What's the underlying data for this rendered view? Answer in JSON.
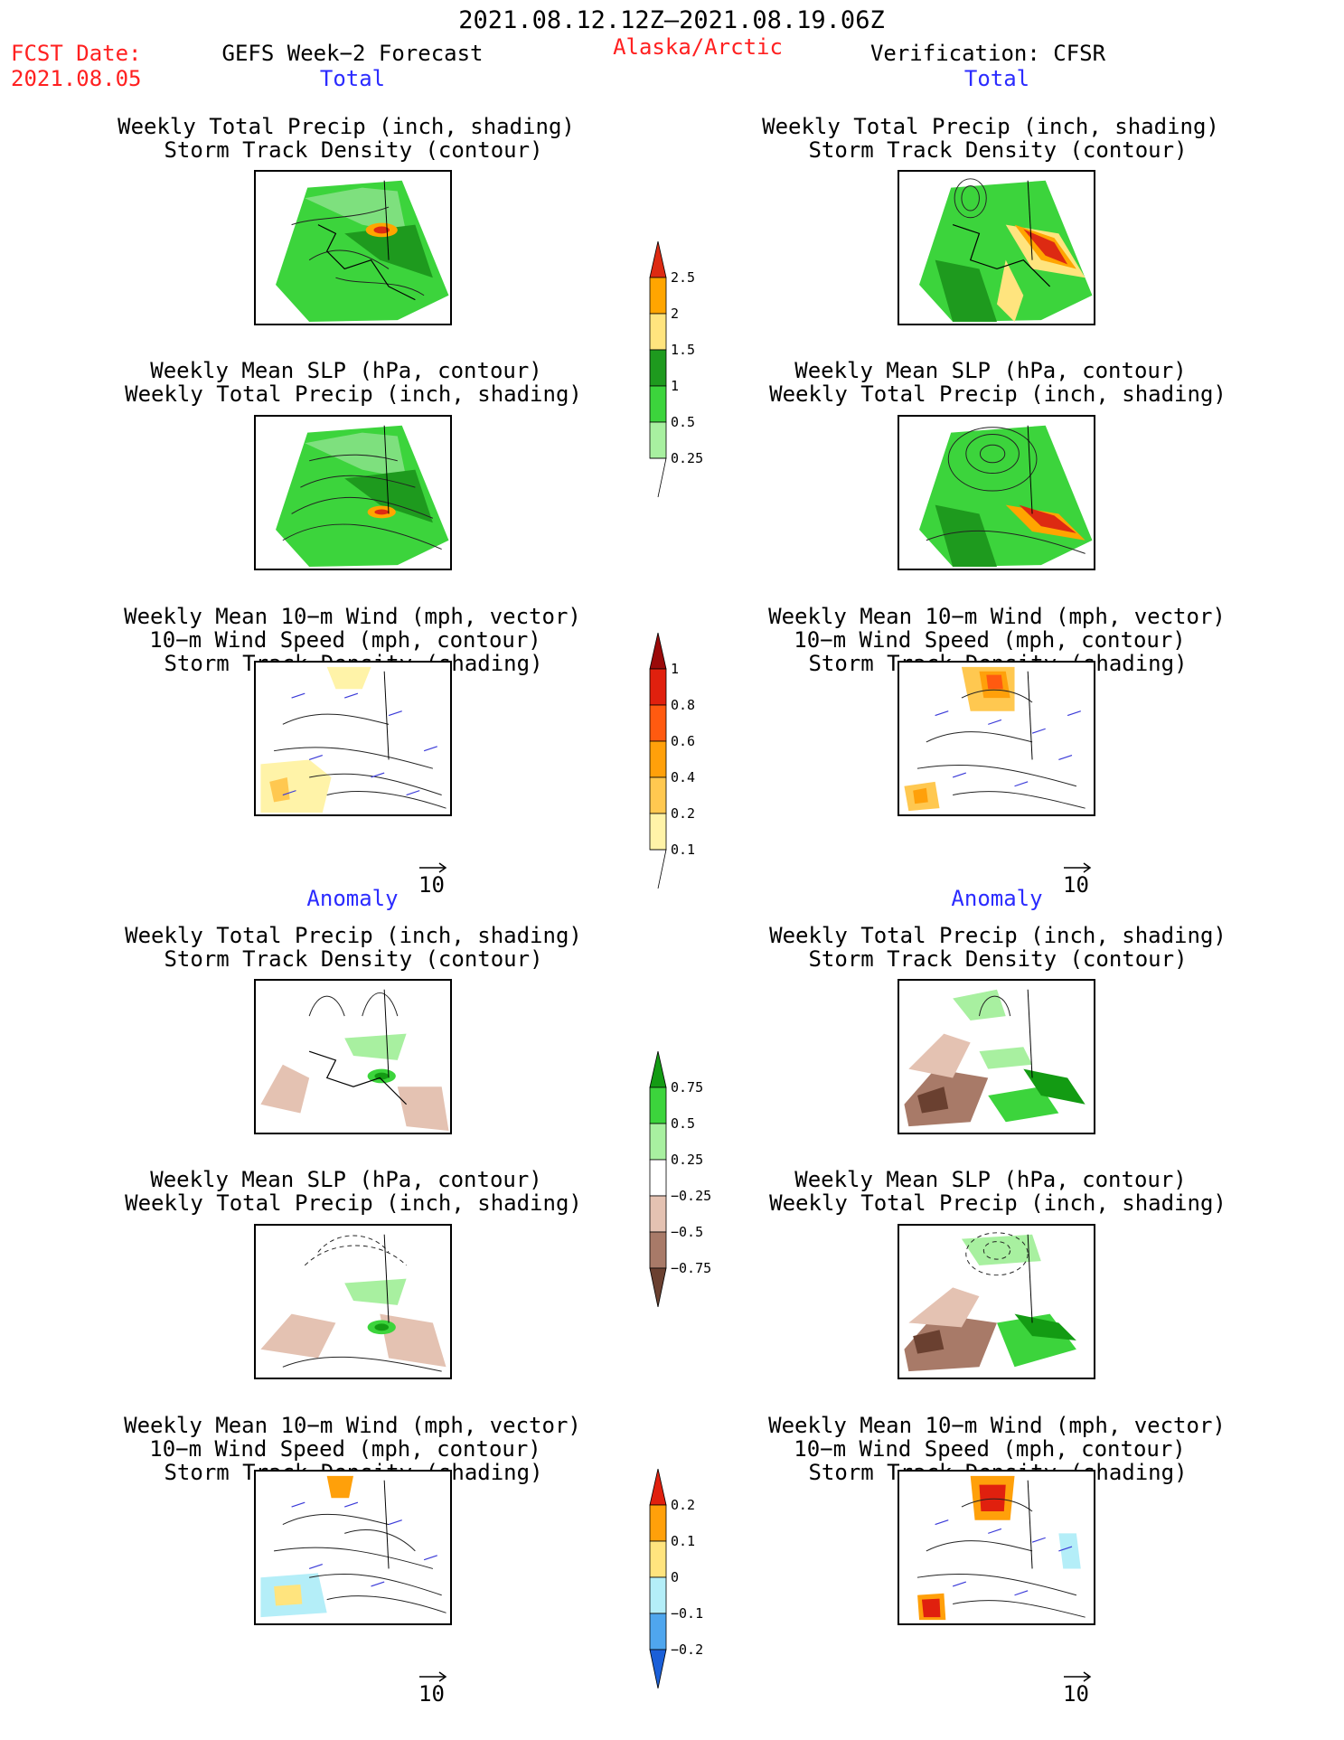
{
  "header": {
    "date_range": "2021.08.12.12Z—2021.08.19.06Z",
    "fcst_label": "FCST Date:",
    "fcst_date": "2021.08.05",
    "forecast_title": "GEFS Week−2 Forecast",
    "region": "Alaska/Arctic",
    "verification": "Verification: CFSR"
  },
  "sections": {
    "total": "Total",
    "anomaly": "Anomaly"
  },
  "panel_titles": {
    "precip_storm": [
      "Weekly Total Precip (inch, shading)",
      "Storm Track Density (contour)"
    ],
    "slp_precip": [
      "Weekly Mean SLP (hPa, contour)",
      "Weekly Total Precip (inch, shading)"
    ],
    "wind": [
      "Weekly Mean 10−m Wind (mph, vector)",
      "10−m Wind Speed (mph, contour)",
      "Storm Track Density (shading)"
    ]
  },
  "vector_reference": "10",
  "colorbars": {
    "precip_total": {
      "labels": [
        "2.5",
        "2",
        "1.5",
        "1",
        "0.5",
        "0.25"
      ],
      "colors": [
        "#dd2a12",
        "#ffa500",
        "#ffe47e",
        "#1e9a1e",
        "#3cd43c",
        "#a8f0a0"
      ]
    },
    "storm_total": {
      "labels": [
        "1",
        "0.8",
        "0.6",
        "0.4",
        "0.2",
        "0.1"
      ],
      "colors": [
        "#9b0a0a",
        "#e0200e",
        "#ff5a10",
        "#ffa00a",
        "#ffc850",
        "#fff3a8"
      ]
    },
    "precip_anom": {
      "labels": [
        "0.75",
        "0.5",
        "0.25",
        "−0.25",
        "−0.5",
        "−0.75"
      ],
      "colors": [
        "#139b13",
        "#3cd43c",
        "#a8f0a0",
        "#ffffff",
        "#e4c2b2",
        "#a87a68",
        "#6a4030"
      ]
    },
    "storm_anom": {
      "labels": [
        "0.2",
        "0.1",
        "0",
        "−0.1",
        "−0.2"
      ],
      "colors": [
        "#e0200e",
        "#ffa00a",
        "#ffe47e",
        "#b4eef8",
        "#4fa6ee",
        "#1a5fd8"
      ]
    }
  }
}
